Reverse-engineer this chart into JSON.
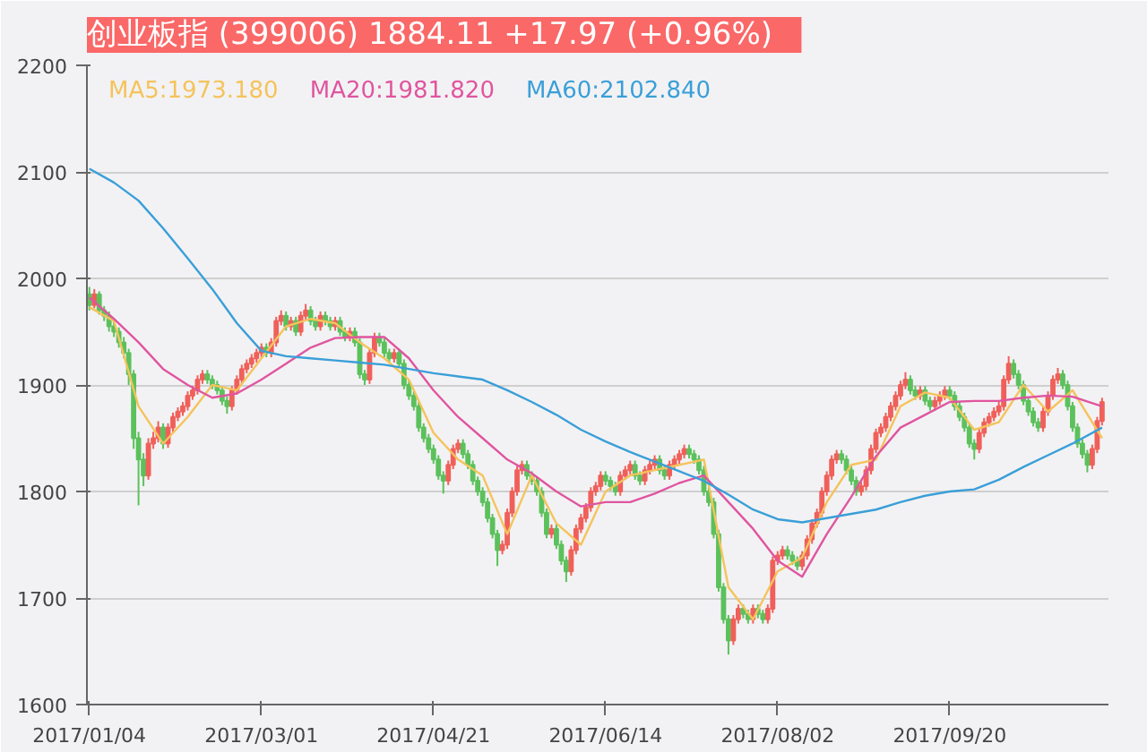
{
  "chart_data": {
    "type": "candlestick",
    "title": "创业板指 (399006)  1884.11   +17.97 (+0.96%)",
    "categories": [
      "2017/01/04",
      null,
      null,
      null,
      null,
      null,
      null,
      null,
      null,
      null,
      null,
      null,
      null,
      null,
      null,
      null,
      null,
      null,
      null,
      null,
      null,
      null,
      null,
      null,
      null,
      null,
      null,
      null,
      null,
      null,
      null,
      null,
      null,
      null,
      null,
      "2017/03/01",
      null,
      null,
      null,
      null,
      null,
      null,
      null,
      null,
      null,
      null,
      null,
      null,
      null,
      null,
      null,
      null,
      null,
      null,
      null,
      null,
      null,
      null,
      null,
      null,
      null,
      null,
      null,
      null,
      null,
      null,
      null,
      null,
      null,
      null,
      "2017/04/21",
      null,
      null,
      null,
      null,
      null,
      null,
      null,
      null,
      null,
      null,
      null,
      null,
      null,
      null,
      null,
      null,
      null,
      null,
      null,
      null,
      null,
      null,
      null,
      null,
      null,
      null,
      null,
      null,
      null,
      null,
      null,
      null,
      null,
      null,
      "2017/06/14",
      null,
      null,
      null,
      null,
      null,
      null,
      null,
      null,
      null,
      null,
      null,
      null,
      null,
      null,
      null,
      null,
      null,
      null,
      null,
      null,
      null,
      null,
      null,
      null,
      null,
      null,
      null,
      null,
      null,
      null,
      null,
      null,
      null,
      null,
      "2017/08/02",
      null,
      null,
      null,
      null,
      null,
      null,
      null,
      null,
      null,
      null,
      null,
      null,
      null,
      null,
      null,
      null,
      null,
      null,
      null,
      null,
      null,
      null,
      null,
      null,
      null,
      null,
      null,
      null,
      null,
      null,
      null,
      null,
      null,
      null,
      "2017/09/20",
      null,
      null,
      null,
      null,
      null,
      null,
      null,
      null,
      null,
      null,
      null,
      null,
      null,
      null,
      null,
      null,
      null,
      null,
      null,
      null,
      null,
      null,
      null,
      null,
      null,
      null,
      null,
      null,
      null,
      null,
      null
    ],
    "ohlc": [
      [
        1985,
        1992,
        1970,
        1975
      ],
      [
        1975,
        1990,
        1972,
        1985
      ],
      [
        1985,
        1988,
        1966,
        1970
      ],
      [
        1970,
        1974,
        1960,
        1965
      ],
      [
        1965,
        1969,
        1950,
        1955
      ],
      [
        1955,
        1960,
        1945,
        1950
      ],
      [
        1950,
        1954,
        1935,
        1940
      ],
      [
        1940,
        1945,
        1925,
        1930
      ],
      [
        1930,
        1934,
        1900,
        1910
      ],
      [
        1910,
        1914,
        1840,
        1850
      ],
      [
        1850,
        1856,
        1787,
        1830
      ],
      [
        1830,
        1836,
        1805,
        1815
      ],
      [
        1815,
        1850,
        1811,
        1845
      ],
      [
        1845,
        1856,
        1840,
        1850
      ],
      [
        1850,
        1866,
        1846,
        1860
      ],
      [
        1860,
        1864,
        1840,
        1845
      ],
      [
        1845,
        1864,
        1841,
        1860
      ],
      [
        1860,
        1874,
        1856,
        1870
      ],
      [
        1870,
        1879,
        1866,
        1875
      ],
      [
        1875,
        1884,
        1871,
        1880
      ],
      [
        1880,
        1894,
        1876,
        1890
      ],
      [
        1890,
        1899,
        1886,
        1895
      ],
      [
        1895,
        1909,
        1891,
        1905
      ],
      [
        1905,
        1914,
        1901,
        1910
      ],
      [
        1910,
        1914,
        1901,
        1905
      ],
      [
        1905,
        1909,
        1896,
        1900
      ],
      [
        1900,
        1904,
        1891,
        1895
      ],
      [
        1895,
        1899,
        1881,
        1885
      ],
      [
        1885,
        1889,
        1873,
        1880
      ],
      [
        1880,
        1899,
        1876,
        1895
      ],
      [
        1895,
        1909,
        1891,
        1905
      ],
      [
        1905,
        1919,
        1901,
        1915
      ],
      [
        1915,
        1924,
        1911,
        1920
      ],
      [
        1920,
        1929,
        1916,
        1925
      ],
      [
        1925,
        1934,
        1921,
        1930
      ],
      [
        1930,
        1939,
        1926,
        1935
      ],
      [
        1935,
        1939,
        1926,
        1930
      ],
      [
        1930,
        1944,
        1926,
        1940
      ],
      [
        1940,
        1964,
        1936,
        1960
      ],
      [
        1960,
        1970,
        1956,
        1965
      ],
      [
        1965,
        1969,
        1951,
        1955
      ],
      [
        1955,
        1964,
        1951,
        1960
      ],
      [
        1960,
        1964,
        1946,
        1950
      ],
      [
        1950,
        1969,
        1946,
        1965
      ],
      [
        1965,
        1976,
        1961,
        1970
      ],
      [
        1970,
        1974,
        1956,
        1960
      ],
      [
        1960,
        1964,
        1951,
        1955
      ],
      [
        1955,
        1969,
        1951,
        1965
      ],
      [
        1965,
        1969,
        1956,
        1960
      ],
      [
        1960,
        1964,
        1951,
        1955
      ],
      [
        1955,
        1964,
        1951,
        1960
      ],
      [
        1960,
        1964,
        1946,
        1950
      ],
      [
        1950,
        1954,
        1941,
        1945
      ],
      [
        1945,
        1954,
        1941,
        1950
      ],
      [
        1950,
        1954,
        1936,
        1940
      ],
      [
        1940,
        1944,
        1906,
        1910
      ],
      [
        1910,
        1914,
        1900,
        1905
      ],
      [
        1905,
        1934,
        1901,
        1930
      ],
      [
        1930,
        1949,
        1926,
        1945
      ],
      [
        1945,
        1949,
        1936,
        1940
      ],
      [
        1940,
        1944,
        1926,
        1930
      ],
      [
        1930,
        1934,
        1921,
        1925
      ],
      [
        1925,
        1934,
        1921,
        1930
      ],
      [
        1930,
        1934,
        1916,
        1920
      ],
      [
        1920,
        1924,
        1896,
        1900
      ],
      [
        1900,
        1904,
        1886,
        1890
      ],
      [
        1890,
        1894,
        1876,
        1880
      ],
      [
        1880,
        1884,
        1856,
        1860
      ],
      [
        1860,
        1864,
        1846,
        1850
      ],
      [
        1850,
        1854,
        1836,
        1840
      ],
      [
        1840,
        1844,
        1826,
        1830
      ],
      [
        1830,
        1834,
        1811,
        1815
      ],
      [
        1815,
        1819,
        1798,
        1810
      ],
      [
        1810,
        1829,
        1806,
        1825
      ],
      [
        1825,
        1844,
        1821,
        1840
      ],
      [
        1840,
        1849,
        1836,
        1845
      ],
      [
        1845,
        1849,
        1831,
        1835
      ],
      [
        1835,
        1839,
        1821,
        1825
      ],
      [
        1825,
        1829,
        1806,
        1810
      ],
      [
        1810,
        1814,
        1796,
        1800
      ],
      [
        1800,
        1804,
        1786,
        1790
      ],
      [
        1790,
        1794,
        1771,
        1775
      ],
      [
        1775,
        1779,
        1756,
        1760
      ],
      [
        1760,
        1764,
        1730,
        1745
      ],
      [
        1745,
        1754,
        1741,
        1750
      ],
      [
        1750,
        1784,
        1746,
        1780
      ],
      [
        1780,
        1804,
        1776,
        1800
      ],
      [
        1800,
        1824,
        1796,
        1820
      ],
      [
        1820,
        1829,
        1816,
        1825
      ],
      [
        1825,
        1829,
        1811,
        1815
      ],
      [
        1815,
        1819,
        1806,
        1810
      ],
      [
        1810,
        1814,
        1796,
        1800
      ],
      [
        1800,
        1804,
        1776,
        1780
      ],
      [
        1780,
        1784,
        1756,
        1760
      ],
      [
        1760,
        1769,
        1756,
        1765
      ],
      [
        1765,
        1769,
        1746,
        1750
      ],
      [
        1750,
        1754,
        1731,
        1735
      ],
      [
        1735,
        1739,
        1715,
        1725
      ],
      [
        1725,
        1749,
        1721,
        1745
      ],
      [
        1745,
        1769,
        1741,
        1765
      ],
      [
        1765,
        1779,
        1761,
        1775
      ],
      [
        1775,
        1789,
        1771,
        1785
      ],
      [
        1785,
        1804,
        1781,
        1800
      ],
      [
        1800,
        1809,
        1796,
        1805
      ],
      [
        1805,
        1819,
        1801,
        1815
      ],
      [
        1815,
        1819,
        1806,
        1810
      ],
      [
        1810,
        1814,
        1801,
        1805
      ],
      [
        1805,
        1809,
        1796,
        1800
      ],
      [
        1800,
        1819,
        1796,
        1815
      ],
      [
        1815,
        1824,
        1811,
        1820
      ],
      [
        1820,
        1829,
        1816,
        1825
      ],
      [
        1825,
        1829,
        1811,
        1815
      ],
      [
        1815,
        1819,
        1806,
        1810
      ],
      [
        1810,
        1824,
        1806,
        1820
      ],
      [
        1820,
        1829,
        1816,
        1825
      ],
      [
        1825,
        1834,
        1821,
        1830
      ],
      [
        1830,
        1834,
        1816,
        1820
      ],
      [
        1820,
        1824,
        1811,
        1815
      ],
      [
        1815,
        1829,
        1811,
        1825
      ],
      [
        1825,
        1834,
        1821,
        1830
      ],
      [
        1830,
        1839,
        1826,
        1835
      ],
      [
        1835,
        1844,
        1831,
        1840
      ],
      [
        1840,
        1844,
        1831,
        1835
      ],
      [
        1835,
        1839,
        1826,
        1830
      ],
      [
        1830,
        1834,
        1816,
        1820
      ],
      [
        1820,
        1824,
        1796,
        1800
      ],
      [
        1800,
        1804,
        1786,
        1790
      ],
      [
        1790,
        1794,
        1756,
        1760
      ],
      [
        1760,
        1764,
        1706,
        1710
      ],
      [
        1710,
        1714,
        1676,
        1680
      ],
      [
        1680,
        1684,
        1647,
        1660
      ],
      [
        1660,
        1684,
        1656,
        1680
      ],
      [
        1680,
        1694,
        1676,
        1690
      ],
      [
        1690,
        1694,
        1681,
        1685
      ],
      [
        1685,
        1689,
        1676,
        1680
      ],
      [
        1680,
        1694,
        1676,
        1690
      ],
      [
        1690,
        1694,
        1681,
        1685
      ],
      [
        1685,
        1689,
        1676,
        1680
      ],
      [
        1680,
        1694,
        1676,
        1690
      ],
      [
        1690,
        1739,
        1686,
        1735
      ],
      [
        1735,
        1744,
        1731,
        1740
      ],
      [
        1740,
        1749,
        1736,
        1745
      ],
      [
        1745,
        1749,
        1736,
        1740
      ],
      [
        1740,
        1744,
        1731,
        1735
      ],
      [
        1735,
        1739,
        1726,
        1730
      ],
      [
        1730,
        1744,
        1726,
        1740
      ],
      [
        1740,
        1759,
        1736,
        1755
      ],
      [
        1755,
        1774,
        1751,
        1770
      ],
      [
        1770,
        1784,
        1766,
        1780
      ],
      [
        1780,
        1804,
        1776,
        1800
      ],
      [
        1800,
        1819,
        1796,
        1815
      ],
      [
        1815,
        1834,
        1811,
        1830
      ],
      [
        1830,
        1839,
        1826,
        1835
      ],
      [
        1835,
        1839,
        1826,
        1830
      ],
      [
        1830,
        1834,
        1816,
        1820
      ],
      [
        1820,
        1824,
        1806,
        1810
      ],
      [
        1810,
        1814,
        1796,
        1800
      ],
      [
        1800,
        1809,
        1796,
        1805
      ],
      [
        1805,
        1824,
        1801,
        1820
      ],
      [
        1820,
        1844,
        1816,
        1840
      ],
      [
        1840,
        1859,
        1836,
        1855
      ],
      [
        1855,
        1864,
        1851,
        1860
      ],
      [
        1860,
        1874,
        1856,
        1870
      ],
      [
        1870,
        1884,
        1866,
        1880
      ],
      [
        1880,
        1894,
        1876,
        1890
      ],
      [
        1890,
        1904,
        1886,
        1900
      ],
      [
        1900,
        1912,
        1896,
        1905
      ],
      [
        1905,
        1909,
        1891,
        1895
      ],
      [
        1895,
        1899,
        1886,
        1890
      ],
      [
        1890,
        1899,
        1886,
        1895
      ],
      [
        1895,
        1899,
        1881,
        1885
      ],
      [
        1885,
        1889,
        1876,
        1880
      ],
      [
        1880,
        1889,
        1876,
        1885
      ],
      [
        1885,
        1894,
        1881,
        1890
      ],
      [
        1890,
        1899,
        1886,
        1895
      ],
      [
        1895,
        1899,
        1886,
        1890
      ],
      [
        1890,
        1894,
        1876,
        1880
      ],
      [
        1880,
        1884,
        1866,
        1870
      ],
      [
        1870,
        1874,
        1856,
        1860
      ],
      [
        1860,
        1864,
        1841,
        1845
      ],
      [
        1845,
        1849,
        1830,
        1840
      ],
      [
        1840,
        1859,
        1836,
        1855
      ],
      [
        1855,
        1869,
        1851,
        1865
      ],
      [
        1865,
        1874,
        1861,
        1870
      ],
      [
        1870,
        1879,
        1866,
        1875
      ],
      [
        1875,
        1884,
        1871,
        1880
      ],
      [
        1880,
        1909,
        1876,
        1905
      ],
      [
        1905,
        1927,
        1901,
        1920
      ],
      [
        1920,
        1924,
        1906,
        1910
      ],
      [
        1910,
        1914,
        1896,
        1900
      ],
      [
        1900,
        1904,
        1881,
        1885
      ],
      [
        1885,
        1889,
        1871,
        1875
      ],
      [
        1875,
        1879,
        1861,
        1865
      ],
      [
        1865,
        1869,
        1856,
        1860
      ],
      [
        1860,
        1879,
        1856,
        1875
      ],
      [
        1875,
        1894,
        1871,
        1890
      ],
      [
        1890,
        1909,
        1886,
        1905
      ],
      [
        1905,
        1916,
        1901,
        1910
      ],
      [
        1910,
        1914,
        1896,
        1900
      ],
      [
        1900,
        1904,
        1876,
        1880
      ],
      [
        1880,
        1884,
        1856,
        1860
      ],
      [
        1860,
        1864,
        1841,
        1845
      ],
      [
        1845,
        1849,
        1831,
        1835
      ],
      [
        1835,
        1839,
        1818,
        1825
      ],
      [
        1825,
        1844,
        1821,
        1840
      ],
      [
        1840,
        1870,
        1836,
        1866.14
      ],
      [
        1866.14,
        1888,
        1862,
        1884.11
      ]
    ],
    "series": [
      {
        "name": "MA5:1973.180",
        "type": "line",
        "color": "#f5c35c",
        "values": [
          1973,
          null,
          null,
          null,
          null,
          1960,
          null,
          null,
          null,
          null,
          1880,
          null,
          null,
          null,
          null,
          1845,
          null,
          null,
          null,
          null,
          1870,
          null,
          null,
          null,
          null,
          1900,
          null,
          null,
          null,
          null,
          1895,
          null,
          null,
          null,
          null,
          1925,
          null,
          null,
          null,
          null,
          1955,
          null,
          null,
          null,
          null,
          1962,
          null,
          null,
          null,
          null,
          1958,
          null,
          null,
          null,
          null,
          1940,
          null,
          null,
          null,
          null,
          1925,
          null,
          null,
          null,
          null,
          1905,
          null,
          null,
          null,
          null,
          1855,
          null,
          null,
          null,
          null,
          1830,
          null,
          null,
          null,
          null,
          1815,
          null,
          null,
          null,
          null,
          1760,
          null,
          null,
          null,
          null,
          1815,
          null,
          null,
          null,
          null,
          1770,
          null,
          null,
          null,
          null,
          1750,
          null,
          null,
          null,
          null,
          1800,
          null,
          null,
          null,
          null,
          1815,
          null,
          null,
          null,
          null,
          1820,
          null,
          null,
          null,
          null,
          1825,
          null,
          null,
          null,
          null,
          1830,
          null,
          null,
          null,
          null,
          1710,
          null,
          null,
          null,
          null,
          1680,
          null,
          null,
          null,
          null,
          1725,
          null,
          null,
          null,
          null,
          1738,
          null,
          null,
          null,
          null,
          1790,
          null,
          null,
          null,
          null,
          1825,
          null,
          null,
          null,
          null,
          1830,
          null,
          null,
          null,
          null,
          1880,
          null,
          null,
          null,
          null,
          1893,
          null,
          null,
          null,
          null,
          1888,
          null,
          null,
          null,
          null,
          1858,
          null,
          null,
          null,
          null,
          1865,
          null,
          null,
          null,
          null,
          1900,
          null,
          null,
          null,
          null,
          1875,
          null,
          null,
          null,
          null,
          1895,
          null,
          null,
          null,
          null,
          null,
          1850
        ]
      },
      {
        "name": "MA20:1981.820",
        "type": "line",
        "color": "#e0559f",
        "values": [
          1982,
          null,
          null,
          null,
          null,
          1962,
          null,
          null,
          null,
          null,
          1940,
          null,
          null,
          null,
          null,
          1915,
          null,
          null,
          null,
          null,
          1900,
          null,
          null,
          null,
          null,
          1888,
          null,
          null,
          null,
          null,
          1892,
          null,
          null,
          null,
          null,
          1905,
          null,
          null,
          null,
          null,
          1920,
          null,
          null,
          null,
          null,
          1935,
          null,
          null,
          null,
          null,
          1944,
          null,
          null,
          null,
          null,
          1945,
          null,
          null,
          null,
          null,
          1945,
          null,
          null,
          null,
          null,
          1925,
          null,
          null,
          null,
          null,
          1895,
          null,
          null,
          null,
          null,
          1870,
          null,
          null,
          null,
          null,
          1850,
          null,
          null,
          null,
          null,
          1830,
          null,
          null,
          null,
          null,
          1817,
          null,
          null,
          null,
          null,
          1800,
          null,
          null,
          null,
          null,
          1786,
          null,
          null,
          null,
          null,
          1790,
          null,
          null,
          null,
          null,
          1790,
          null,
          null,
          null,
          null,
          1798,
          null,
          null,
          null,
          null,
          1808,
          null,
          null,
          null,
          null,
          1815,
          null,
          null,
          null,
          null,
          1790,
          null,
          null,
          null,
          null,
          1765,
          null,
          null,
          null,
          null,
          1735,
          null,
          null,
          null,
          null,
          1720,
          null,
          null,
          null,
          null,
          1760,
          null,
          null,
          null,
          null,
          1795,
          null,
          null,
          null,
          null,
          1833,
          null,
          null,
          null,
          null,
          1860,
          null,
          null,
          null,
          null,
          1872,
          null,
          null,
          null,
          null,
          1884,
          null,
          null,
          null,
          null,
          1885,
          null,
          null,
          null,
          null,
          1885,
          null,
          null,
          null,
          null,
          1888,
          null,
          null,
          null,
          null,
          1890,
          null,
          null,
          null,
          null,
          1889,
          null,
          null,
          null,
          null,
          null,
          1880
        ]
      },
      {
        "name": "MA60:2102.840",
        "type": "line",
        "color": "#3a9fd8",
        "values": [
          2103,
          null,
          null,
          null,
          null,
          2090,
          null,
          null,
          null,
          null,
          2073,
          null,
          null,
          null,
          null,
          2047,
          null,
          null,
          null,
          null,
          2019,
          null,
          null,
          null,
          null,
          1990,
          null,
          null,
          null,
          null,
          1958,
          null,
          null,
          null,
          null,
          1932,
          null,
          null,
          null,
          null,
          1927,
          null,
          null,
          null,
          null,
          1925,
          null,
          null,
          null,
          null,
          1923,
          null,
          null,
          null,
          null,
          1921,
          null,
          null,
          null,
          null,
          1919,
          null,
          null,
          null,
          null,
          1915,
          null,
          null,
          null,
          null,
          1911,
          null,
          null,
          null,
          null,
          1908,
          null,
          null,
          null,
          null,
          1905,
          null,
          null,
          null,
          null,
          1895,
          null,
          null,
          null,
          null,
          1884,
          null,
          null,
          null,
          null,
          1872,
          null,
          null,
          null,
          null,
          1858,
          null,
          null,
          null,
          null,
          1847,
          null,
          null,
          null,
          null,
          1837,
          null,
          null,
          null,
          null,
          1828,
          null,
          null,
          null,
          null,
          1819,
          null,
          null,
          null,
          null,
          1810,
          null,
          null,
          null,
          null,
          1797,
          null,
          null,
          null,
          null,
          1783,
          null,
          null,
          null,
          null,
          1774,
          null,
          null,
          null,
          null,
          1771,
          null,
          null,
          null,
          null,
          1775,
          null,
          null,
          null,
          null,
          1779,
          null,
          null,
          null,
          null,
          1783,
          null,
          null,
          null,
          null,
          1790,
          null,
          null,
          null,
          null,
          1796,
          null,
          null,
          null,
          null,
          1800,
          null,
          null,
          null,
          null,
          1802,
          null,
          null,
          null,
          null,
          1811,
          null,
          null,
          null,
          null,
          1823,
          null,
          null,
          null,
          null,
          1834,
          null,
          null,
          null,
          null,
          1845,
          null,
          null,
          null,
          null,
          null,
          1860
        ]
      }
    ],
    "ylim": [
      1600,
      2200
    ],
    "yticks": [
      1600,
      1700,
      1800,
      1900,
      2000,
      2100,
      2200
    ],
    "grid": "y",
    "legend": "top left"
  }
}
